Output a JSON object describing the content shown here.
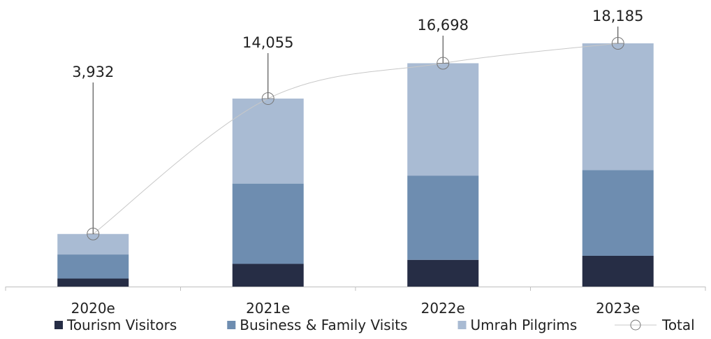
{
  "chart_data": {
    "type": "bar",
    "stacked": true,
    "categories": [
      "2020e",
      "2021e",
      "2022e",
      "2023e"
    ],
    "series": [
      {
        "name": "Tourism Visitors",
        "color": "#262d45",
        "values": [
          600,
          1700,
          2000,
          2300
        ]
      },
      {
        "name": "Business & Family Visits",
        "color": "#6e8db0",
        "values": [
          1800,
          6000,
          6300,
          6400
        ]
      },
      {
        "name": "Umrah Pilgrims",
        "color": "#a9bbd3",
        "values": [
          1532,
          6355,
          8398,
          9485
        ]
      }
    ],
    "total": {
      "name": "Total",
      "color": "#c8c8c8",
      "values": [
        3932,
        14055,
        16698,
        18185
      ],
      "labels": [
        "3,932",
        "14,055",
        "16,698",
        "18,185"
      ]
    },
    "ylim": [
      0,
      18185
    ],
    "grid": false,
    "legend": "bottom"
  }
}
